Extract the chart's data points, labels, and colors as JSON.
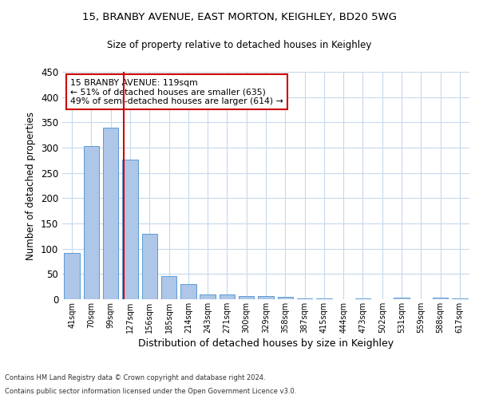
{
  "title1": "15, BRANBY AVENUE, EAST MORTON, KEIGHLEY, BD20 5WG",
  "title2": "Size of property relative to detached houses in Keighley",
  "xlabel": "Distribution of detached houses by size in Keighley",
  "ylabel": "Number of detached properties",
  "categories": [
    "41sqm",
    "70sqm",
    "99sqm",
    "127sqm",
    "156sqm",
    "185sqm",
    "214sqm",
    "243sqm",
    "271sqm",
    "300sqm",
    "329sqm",
    "358sqm",
    "387sqm",
    "415sqm",
    "444sqm",
    "473sqm",
    "502sqm",
    "531sqm",
    "559sqm",
    "588sqm",
    "617sqm"
  ],
  "values": [
    92,
    303,
    340,
    276,
    130,
    46,
    30,
    9,
    10,
    7,
    7,
    4,
    2,
    1,
    0,
    1,
    0,
    3,
    0,
    3,
    2
  ],
  "bar_color": "#aec6e8",
  "bar_edge_color": "#5b9bd5",
  "grid_color": "#c8d8ec",
  "background_color": "#ffffff",
  "property_line_bin_index": 2.67,
  "vline_color": "#cc0000",
  "annotation_text": "15 BRANBY AVENUE: 119sqm\n← 51% of detached houses are smaller (635)\n49% of semi-detached houses are larger (614) →",
  "annotation_box_color": "#ffffff",
  "annotation_box_edge": "#cc0000",
  "footer1": "Contains HM Land Registry data © Crown copyright and database right 2024.",
  "footer2": "Contains public sector information licensed under the Open Government Licence v3.0.",
  "ylim": [
    0,
    450
  ],
  "yticks": [
    0,
    50,
    100,
    150,
    200,
    250,
    300,
    350,
    400,
    450
  ]
}
